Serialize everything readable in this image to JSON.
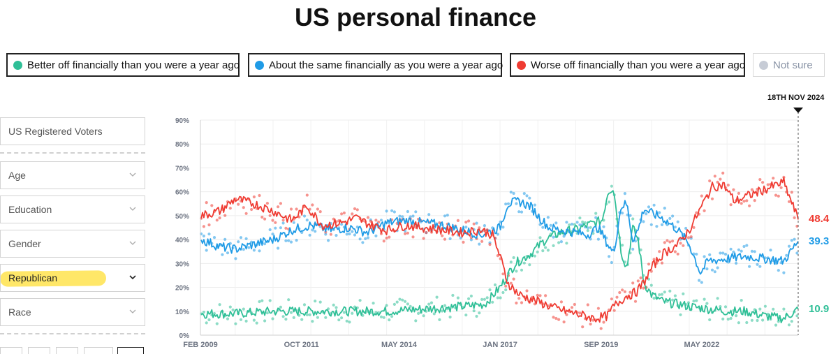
{
  "title": "US personal finance",
  "legend": [
    {
      "label": "Better off financially than you were a year ago",
      "color": "#2fbf97",
      "active": true
    },
    {
      "label": "About the same financially as you were a year ago",
      "color": "#1f9be6",
      "active": true
    },
    {
      "label": "Worse off financially than you were a year ago",
      "color": "#ef3b32",
      "active": true
    },
    {
      "label": "Not sure",
      "color": "#c7ccd6",
      "active": false
    }
  ],
  "sidebar": {
    "population": "US Registered Voters",
    "filters": [
      {
        "label": "Age"
      },
      {
        "label": "Education"
      },
      {
        "label": "Gender"
      },
      {
        "label": "Republican"
      },
      {
        "label": "Race"
      }
    ]
  },
  "current_date_label": "18TH NOV 2024",
  "chart_data": {
    "type": "line",
    "title": "US personal finance",
    "subtitle": "US Registered Voters · Republican",
    "xlabel": "",
    "ylabel": "",
    "x_range": [
      2009.08,
      2024.88
    ],
    "ylim": [
      0,
      90
    ],
    "y_ticks": [
      0,
      10,
      20,
      30,
      40,
      50,
      60,
      70,
      80,
      90
    ],
    "y_tick_labels": [
      "0%",
      "10%",
      "20%",
      "30%",
      "40%",
      "50%",
      "60%",
      "70%",
      "80%",
      "90%"
    ],
    "x_ticks": [
      {
        "x": 2009.08,
        "label": "FEB 2009"
      },
      {
        "x": 2011.75,
        "label": "OCT 2011"
      },
      {
        "x": 2014.33,
        "label": "MAY 2014"
      },
      {
        "x": 2017.0,
        "label": "JAN 2017"
      },
      {
        "x": 2019.67,
        "label": "SEP 2019"
      },
      {
        "x": 2022.33,
        "label": "MAY 2022"
      }
    ],
    "grid": true,
    "series": [
      {
        "name": "Better off financially than you were a year ago",
        "color": "#2fbf97",
        "x": [
          2009.1,
          2010.0,
          2011.0,
          2012.0,
          2013.0,
          2014.0,
          2015.0,
          2016.0,
          2016.6,
          2017.0,
          2017.4,
          2017.8,
          2018.2,
          2018.6,
          2019.0,
          2019.3,
          2019.5,
          2019.7,
          2019.85,
          2020.0,
          2020.2,
          2020.35,
          2020.5,
          2020.65,
          2020.8,
          2021.0,
          2021.3,
          2021.7,
          2022.0,
          2022.5,
          2023.0,
          2023.5,
          2024.0,
          2024.5,
          2024.88
        ],
        "values": [
          9,
          9,
          10,
          10,
          10,
          10,
          11,
          12,
          13,
          20,
          30,
          34,
          40,
          43,
          44,
          46,
          47,
          48,
          60,
          62,
          35,
          28,
          45,
          40,
          22,
          17,
          14,
          13,
          12,
          11,
          10,
          10,
          8,
          7,
          10.9
        ],
        "end_label": "10.9"
      },
      {
        "name": "About the same financially as you were a year ago",
        "color": "#1f9be6",
        "x": [
          2009.1,
          2009.6,
          2010.0,
          2010.5,
          2011.0,
          2011.5,
          2012.0,
          2012.5,
          2013.0,
          2013.5,
          2014.0,
          2014.5,
          2015.0,
          2015.5,
          2016.0,
          2016.5,
          2017.0,
          2017.2,
          2017.5,
          2017.8,
          2018.0,
          2018.3,
          2018.6,
          2019.0,
          2019.3,
          2019.6,
          2019.85,
          2020.0,
          2020.2,
          2020.35,
          2020.5,
          2020.65,
          2020.8,
          2021.0,
          2021.3,
          2021.7,
          2022.0,
          2022.3,
          2022.5,
          2023.0,
          2023.5,
          2024.0,
          2024.5,
          2024.88
        ],
        "values": [
          40,
          37,
          36,
          38,
          40,
          44,
          46,
          44,
          45,
          43,
          47,
          48,
          47,
          46,
          44,
          42,
          45,
          55,
          56,
          54,
          50,
          45,
          44,
          43,
          42,
          45,
          38,
          34,
          54,
          55,
          40,
          44,
          53,
          51,
          49,
          44,
          38,
          26,
          31,
          32,
          33,
          32,
          31,
          39.3
        ],
        "end_label": "39.3"
      },
      {
        "name": "Worse off financially than you were a year ago",
        "color": "#ef3b32",
        "x": [
          2009.1,
          2009.6,
          2010.0,
          2010.5,
          2011.0,
          2011.5,
          2011.9,
          2012.3,
          2012.8,
          2013.2,
          2013.6,
          2014.0,
          2014.5,
          2015.0,
          2015.5,
          2016.0,
          2016.5,
          2016.8,
          2017.0,
          2017.2,
          2017.5,
          2018.0,
          2018.5,
          2019.0,
          2019.5,
          2019.85,
          2020.0,
          2020.3,
          2020.6,
          2020.8,
          2021.0,
          2021.3,
          2021.7,
          2022.0,
          2022.3,
          2022.6,
          2022.9,
          2023.2,
          2023.5,
          2024.0,
          2024.5,
          2024.88
        ],
        "values": [
          50,
          52,
          57,
          55,
          52,
          48,
          54,
          46,
          47,
          49,
          46,
          44,
          46,
          45,
          44,
          43,
          44,
          42,
          33,
          22,
          17,
          14,
          11,
          9,
          7,
          8,
          12,
          16,
          18,
          22,
          28,
          34,
          38,
          44,
          53,
          62,
          63,
          56,
          58,
          61,
          64,
          48.4
        ],
        "end_label": "48.4"
      }
    ]
  }
}
